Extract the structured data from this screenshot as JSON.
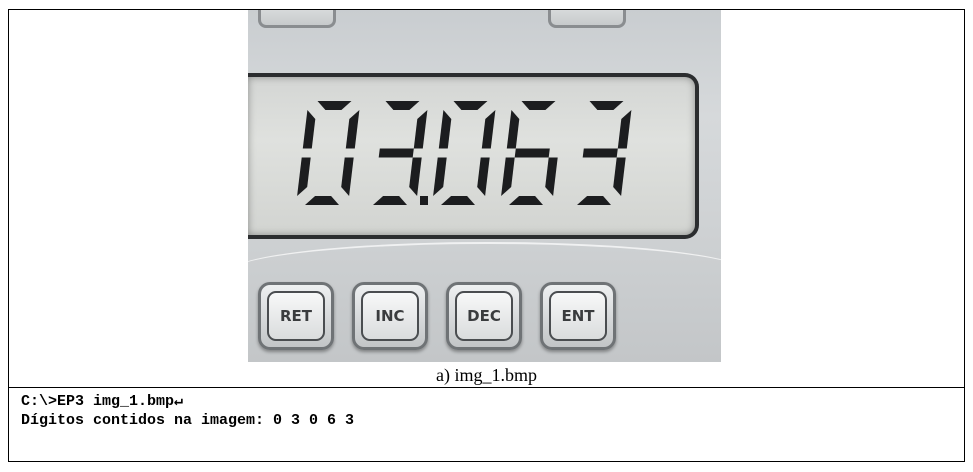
{
  "display": {
    "digits": [
      "0",
      "3",
      "0",
      "6",
      "3"
    ],
    "decimal_after_index": 1
  },
  "keypad": [
    {
      "label": "RET"
    },
    {
      "label": "INC"
    },
    {
      "label": "DEC"
    },
    {
      "label": "ENT"
    }
  ],
  "caption": "a) img_1.bmp",
  "console": {
    "command": "C:\\>EP3 img_1.bmp↵",
    "output": "Dígitos contidos na imagem: 0 3 0 6 3"
  },
  "colors": {
    "segment": "#1c1d1f",
    "lcd_background": "#dfe1de",
    "panel": "#cfd2d4",
    "border": "#000000"
  }
}
